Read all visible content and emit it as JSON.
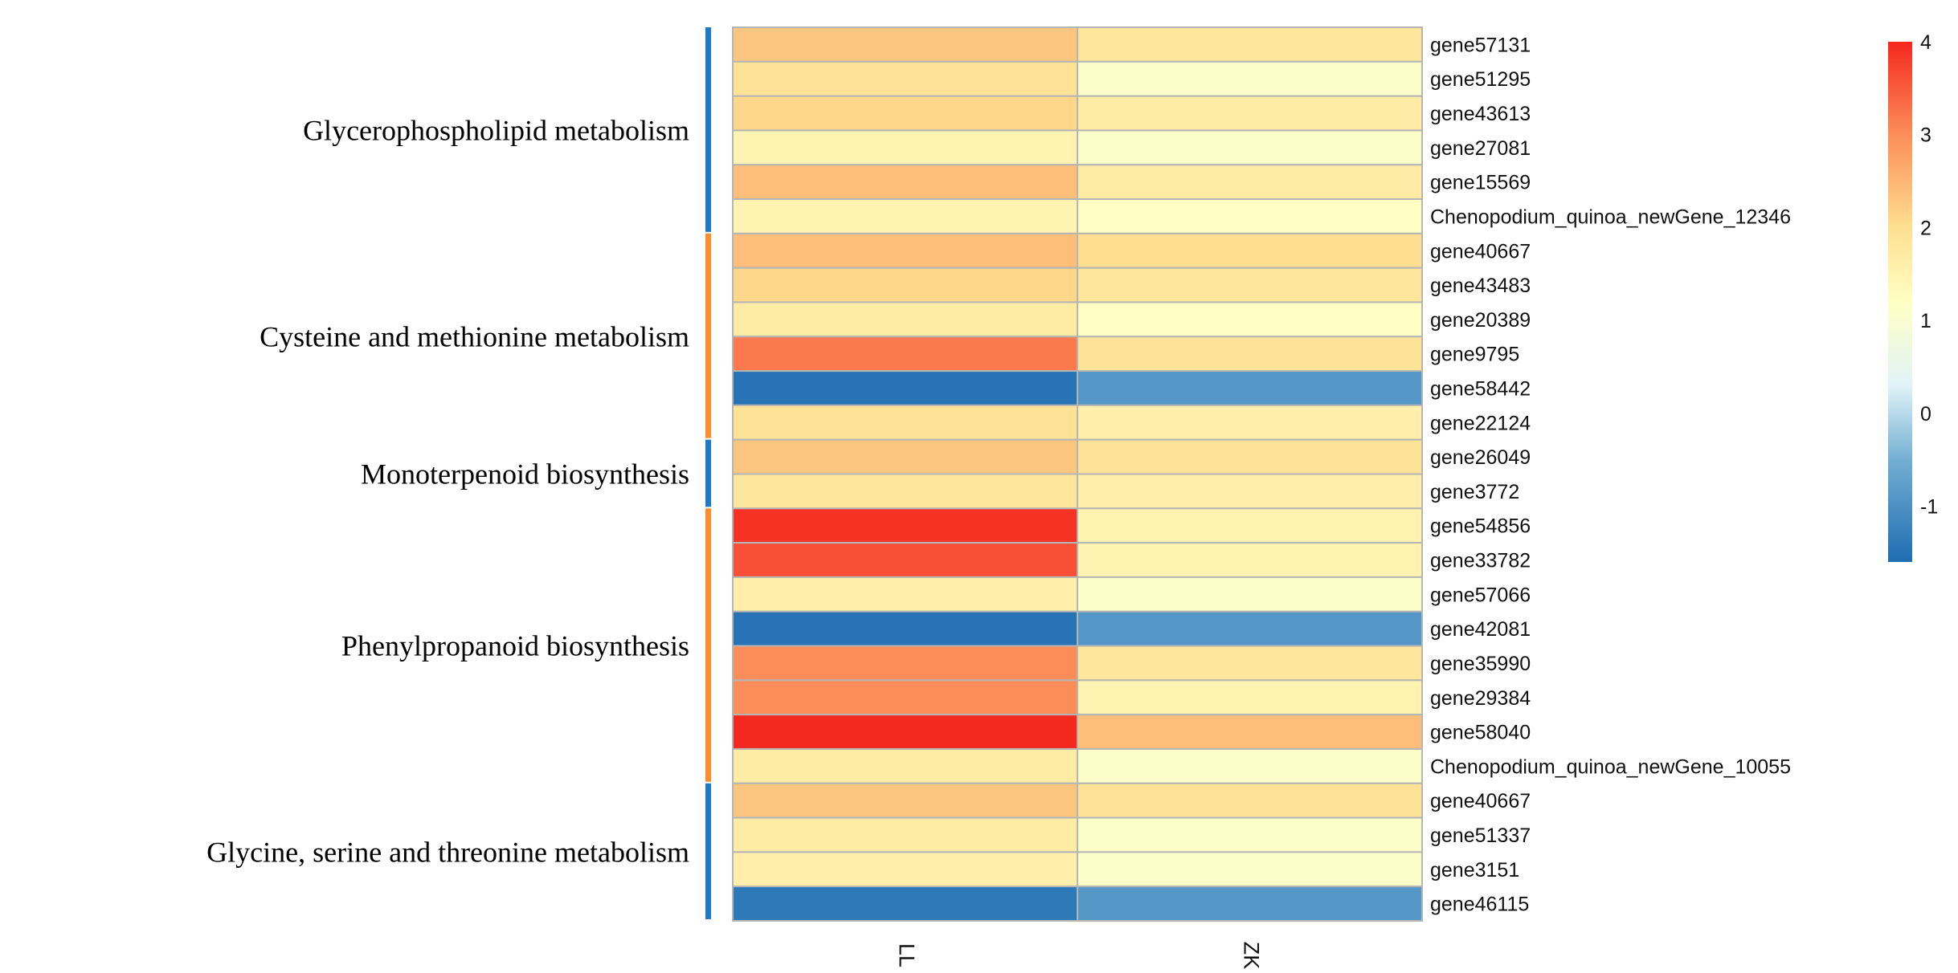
{
  "chart_data": {
    "type": "heatmap",
    "title": "",
    "columns": [
      "LL",
      "ZK"
    ],
    "rows": [
      {
        "gene": "gene57131",
        "values": [
          2.3,
          1.8
        ]
      },
      {
        "gene": "gene51295",
        "values": [
          1.9,
          1.1
        ]
      },
      {
        "gene": "gene43613",
        "values": [
          2.1,
          1.7
        ]
      },
      {
        "gene": "gene27081",
        "values": [
          1.5,
          1.1
        ]
      },
      {
        "gene": "gene15569",
        "values": [
          2.4,
          1.7
        ]
      },
      {
        "gene": "Chenopodium_quinoa_newGene_12346",
        "values": [
          1.5,
          1.2
        ]
      },
      {
        "gene": "gene40667",
        "values": [
          2.4,
          2.0
        ]
      },
      {
        "gene": "gene43483",
        "values": [
          2.1,
          1.8
        ]
      },
      {
        "gene": "gene20389",
        "values": [
          1.7,
          1.2
        ]
      },
      {
        "gene": "gene9795",
        "values": [
          3.2,
          1.9
        ]
      },
      {
        "gene": "gene58442",
        "values": [
          -1.5,
          -0.9
        ]
      },
      {
        "gene": "gene22124",
        "values": [
          1.9,
          1.6
        ]
      },
      {
        "gene": "gene26049",
        "values": [
          2.3,
          1.9
        ]
      },
      {
        "gene": "gene3772",
        "values": [
          1.8,
          1.6
        ]
      },
      {
        "gene": "gene54856",
        "values": [
          3.9,
          1.5
        ]
      },
      {
        "gene": "gene33782",
        "values": [
          3.6,
          1.5
        ]
      },
      {
        "gene": "gene57066",
        "values": [
          1.6,
          1.1
        ]
      },
      {
        "gene": "gene42081",
        "values": [
          -1.5,
          -0.9
        ]
      },
      {
        "gene": "gene35990",
        "values": [
          3.0,
          1.8
        ]
      },
      {
        "gene": "gene29384",
        "values": [
          3.0,
          1.5
        ]
      },
      {
        "gene": "gene58040",
        "values": [
          4.0,
          2.4
        ]
      },
      {
        "gene": "Chenopodium_quinoa_newGene_10055",
        "values": [
          1.7,
          1.1
        ]
      },
      {
        "gene": "gene40667",
        "values": [
          2.3,
          1.9
        ]
      },
      {
        "gene": "gene51337",
        "values": [
          1.7,
          1.1
        ]
      },
      {
        "gene": "gene3151",
        "values": [
          1.6,
          1.1
        ]
      },
      {
        "gene": "gene46115",
        "values": [
          -1.4,
          -0.9
        ]
      }
    ],
    "groups": [
      {
        "label": "Glycerophospholipid  metabolism",
        "start": 0,
        "end": 5,
        "color": "#1f78c8"
      },
      {
        "label": "Cysteine and methionine metabolism",
        "start": 6,
        "end": 11,
        "color": "#ff8c2a"
      },
      {
        "label": "Monoterpenoid biosynthesis",
        "start": 12,
        "end": 13,
        "color": "#1f78c8"
      },
      {
        "label": "Phenylpropanoid biosynthesis",
        "start": 14,
        "end": 21,
        "color": "#ff8c2a"
      },
      {
        "label": "Glycine, serine and threonine metabolism",
        "start": 22,
        "end": 25,
        "color": "#1f78c8"
      }
    ],
    "colorbar": {
      "range": [
        -1.6,
        4
      ],
      "ticks": [
        "4",
        "3",
        "2",
        "1",
        "0",
        "-1"
      ],
      "tick_values": [
        4,
        3,
        2,
        1,
        0,
        -1
      ],
      "stops": [
        {
          "value": -1.6,
          "color": "#1f6db2"
        },
        {
          "value": -0.5,
          "color": "#74afd3"
        },
        {
          "value": 0.3,
          "color": "#e0f3f8"
        },
        {
          "value": 1.2,
          "color": "#ffffc4"
        },
        {
          "value": 2.0,
          "color": "#fedf90"
        },
        {
          "value": 3.0,
          "color": "#fc8d59"
        },
        {
          "value": 4.0,
          "color": "#f5281f"
        }
      ]
    }
  }
}
